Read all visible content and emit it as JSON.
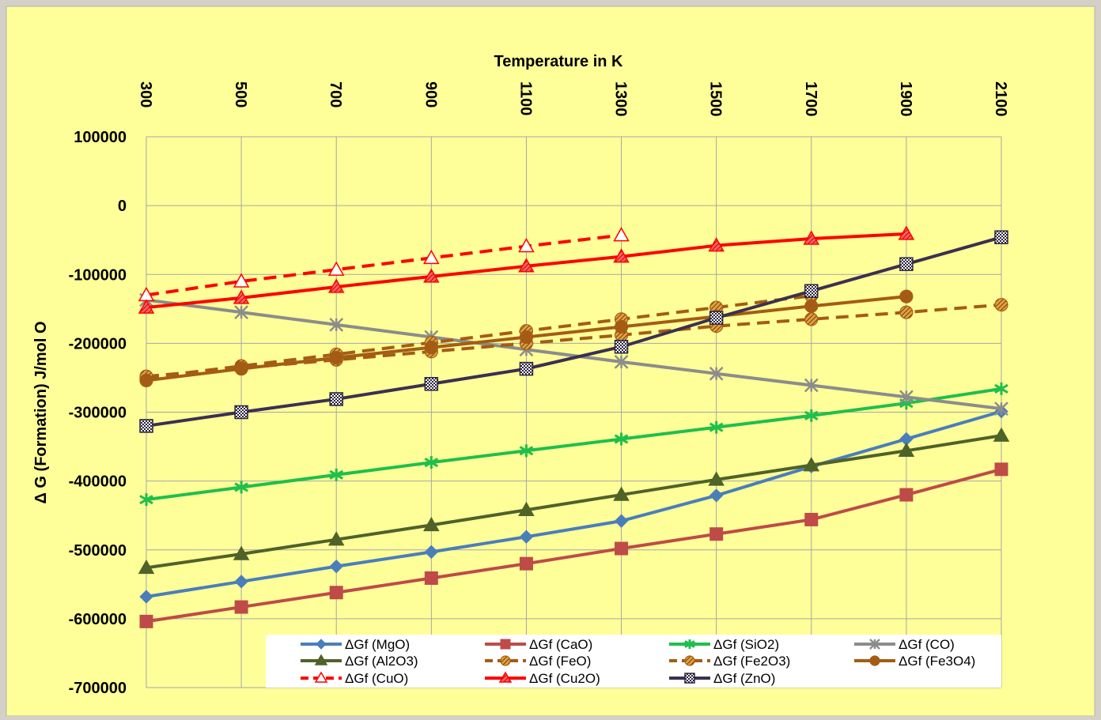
{
  "chart_data": {
    "type": "line",
    "title": "",
    "xlabel": "Temperature in K",
    "ylabel": "Δ G (Formation) J/mol O",
    "x": [
      300,
      500,
      700,
      900,
      1100,
      1300,
      1500,
      1700,
      1900,
      2100
    ],
    "x_tick_labels": [
      "300",
      "500",
      "700",
      "900",
      "1100",
      "1300",
      "1500",
      "1700",
      "1900",
      "2100"
    ],
    "x_axis_position": "top",
    "ylim": [
      -700000,
      100000
    ],
    "y_ticks": [
      100000,
      0,
      -100000,
      -200000,
      -300000,
      -400000,
      -500000,
      -600000,
      -700000
    ],
    "y_tick_labels": [
      "100000",
      "0",
      "-100000",
      "-200000",
      "-300000",
      "-400000",
      "-500000",
      "-600000",
      "-700000"
    ],
    "grid": true,
    "legend_placement": "bottom-inside",
    "colors": {
      "plot_background": "#ffff99",
      "frame_background": "#ffff99",
      "gridline": "#a6a6a6",
      "legend_background": "#ffffff"
    },
    "series": [
      {
        "name": "ΔGf (MgO)",
        "color": "#4a7ebb",
        "dash": false,
        "marker": "diamond",
        "values": [
          -568000,
          -546000,
          -524000,
          -503000,
          -481000,
          -458000,
          -421000,
          -379000,
          -339000,
          -299000
        ]
      },
      {
        "name": "ΔGf (CaO)",
        "color": "#be4b48",
        "dash": false,
        "marker": "square",
        "values": [
          -604000,
          -583000,
          -562000,
          -541000,
          -520000,
          -498000,
          -477000,
          -456000,
          -420000,
          -383000
        ]
      },
      {
        "name": "ΔGf (SiO2)",
        "color": "#1fbf4b",
        "dash": false,
        "marker": "asterisk",
        "values": [
          -427000,
          -409000,
          -391000,
          -373000,
          -356000,
          -339000,
          -322000,
          -305000,
          -287000,
          -266000
        ]
      },
      {
        "name": "ΔGf (CO)",
        "color": "#8c8c8c",
        "dash": false,
        "marker": "xstar",
        "values": [
          -137000,
          -155000,
          -173000,
          -191000,
          -209000,
          -227000,
          -244000,
          -261000,
          -278000,
          -295000
        ]
      },
      {
        "name": "ΔGf (Al2O3)",
        "color": "#4f6228",
        "dash": false,
        "marker": "triangle",
        "values": [
          -526000,
          -506000,
          -485000,
          -464000,
          -442000,
          -420000,
          -398000,
          -377000,
          -356000,
          -334000
        ]
      },
      {
        "name": "ΔGf (FeO)",
        "color": "#a45c14",
        "dash": true,
        "marker": "hatched-circle",
        "values": [
          -250000,
          -233000,
          -216000,
          -199000,
          -182000,
          -165000,
          -148000,
          -131000,
          null,
          null
        ]
      },
      {
        "name": "ΔGf (Fe2O3)",
        "color": "#a45c14",
        "dash": true,
        "marker": "hatched-circle",
        "values": [
          -248000,
          -236000,
          -224000,
          -212000,
          -200000,
          -188000,
          -175000,
          -165000,
          -155000,
          -144000
        ]
      },
      {
        "name": "ΔGf (Fe3O4)",
        "color": "#a45c14",
        "dash": false,
        "marker": "circle",
        "values": [
          -254000,
          -237000,
          -221000,
          -206000,
          -191000,
          -176000,
          -161000,
          -146000,
          -132000,
          null
        ]
      },
      {
        "name": "ΔGf (CuO)",
        "color": "#ff0000",
        "dash": true,
        "marker": "open-triangle",
        "values": [
          -130000,
          -110000,
          -93000,
          -76000,
          -59000,
          -43000,
          null,
          null,
          null,
          null
        ]
      },
      {
        "name": "ΔGf (Cu2O)",
        "color": "#ff0000",
        "dash": false,
        "marker": "hatched-triangle",
        "values": [
          -148000,
          -134000,
          -118000,
          -103000,
          -88000,
          -74000,
          -58000,
          -48000,
          -41000,
          null
        ]
      },
      {
        "name": "ΔGf (ZnO)",
        "color": "#3b3051",
        "dash": false,
        "marker": "checker-square",
        "values": [
          -320000,
          -300000,
          -281000,
          -259000,
          -237000,
          -205000,
          -163000,
          -124000,
          -85000,
          -46000
        ]
      }
    ]
  }
}
